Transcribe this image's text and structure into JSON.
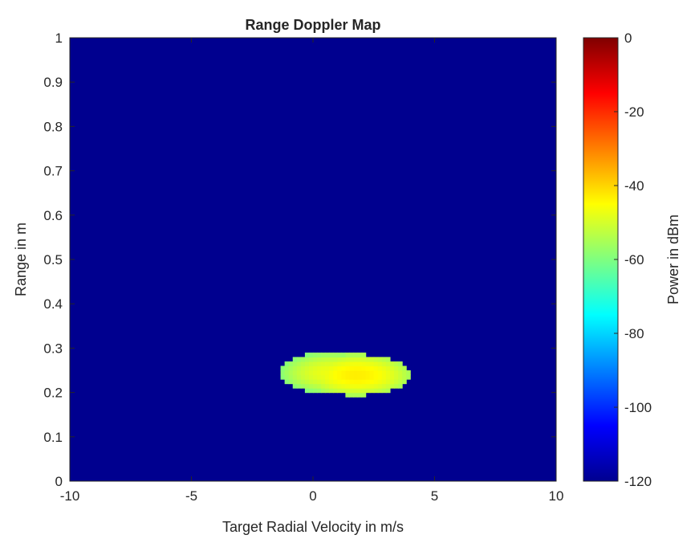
{
  "chart_data": {
    "type": "heatmap",
    "title": "Range Doppler Map",
    "xlabel": "Target Radial Velocity in m/s",
    "ylabel": "Range in m",
    "xlim": [
      -10,
      10
    ],
    "ylim": [
      0,
      1
    ],
    "xticks": [
      "-10",
      "-5",
      "0",
      "5",
      "10"
    ],
    "yticks": [
      "0",
      "0.1",
      "0.2",
      "0.3",
      "0.4",
      "0.5",
      "0.6",
      "0.7",
      "0.8",
      "0.9",
      "1"
    ],
    "colormap": "jet",
    "background_level_dbm": -120,
    "colorbar": {
      "label": "Power in dBm",
      "range": [
        -120,
        0
      ],
      "ticks": [
        "0",
        "-20",
        "-40",
        "-60",
        "-80",
        "-100",
        "-120"
      ]
    },
    "hotspots": [
      {
        "velocity": 1.8,
        "range": 0.24,
        "peak_dbm": -43
      },
      {
        "velocity": 0.8,
        "range": 0.245,
        "peak_dbm": -47
      }
    ],
    "grid": false
  }
}
